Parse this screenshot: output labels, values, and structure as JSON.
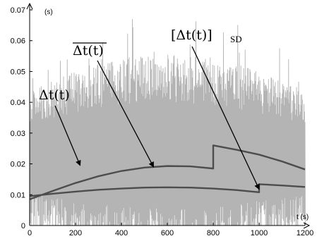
{
  "chart_data": {
    "type": "line",
    "x_unit_label": "t (s)",
    "y_unit_label": "(s)",
    "xlim": [
      0,
      1200
    ],
    "ylim": [
      0,
      0.07
    ],
    "x_ticks": [
      0,
      200,
      400,
      600,
      800,
      1000,
      1200
    ],
    "y_ticks": [
      0,
      0.01,
      0.02,
      0.03,
      0.04,
      0.05,
      0.06,
      0.07
    ],
    "x_tick_labels": [
      "0",
      "200",
      "400",
      "600",
      "800",
      "1000",
      "1200"
    ],
    "y_tick_labels": [
      "0",
      "0.01",
      "0.02",
      "0.03",
      "0.04",
      "0.05",
      "0.06",
      "0.07"
    ],
    "colors": {
      "noise": "#b4b4b4",
      "curve": "#4d4d4d",
      "axis": "#000000"
    },
    "series": [
      {
        "label": "Δt(t)",
        "style": "noise",
        "mean": 0.02,
        "range": [
          0.0,
          0.067
        ]
      },
      {
        "label": "overline Δt(t)",
        "style": "line",
        "x": [
          0,
          100,
          200,
          300,
          400,
          500,
          600,
          700,
          800,
          800,
          900,
          1000,
          1100,
          1200
        ],
        "y": [
          0.0085,
          0.0112,
          0.0138,
          0.016,
          0.0177,
          0.0188,
          0.0193,
          0.0192,
          0.0185,
          0.026,
          0.0246,
          0.023,
          0.0208,
          0.0182
        ]
      },
      {
        "label": "[Δt(t)]SD",
        "style": "line",
        "x": [
          0,
          100,
          200,
          300,
          400,
          500,
          600,
          700,
          800,
          900,
          1000,
          1000,
          1100,
          1200
        ],
        "y": [
          0.0095,
          0.0103,
          0.011,
          0.0116,
          0.012,
          0.0123,
          0.0124,
          0.0123,
          0.012,
          0.0115,
          0.0108,
          0.0134,
          0.013,
          0.0125
        ]
      }
    ],
    "annotations": [
      {
        "label_main": "Δt(t)",
        "label_sub": "",
        "overline": false,
        "arrow_to": [
          220,
          0.0195
        ]
      },
      {
        "label_main": "Δt(t)",
        "label_sub": "",
        "overline": true,
        "arrow_to": [
          540,
          0.019
        ]
      },
      {
        "label_main": "[Δt(t)]",
        "label_sub": "SD",
        "overline": false,
        "arrow_to": [
          1000,
          0.0118
        ]
      }
    ]
  }
}
